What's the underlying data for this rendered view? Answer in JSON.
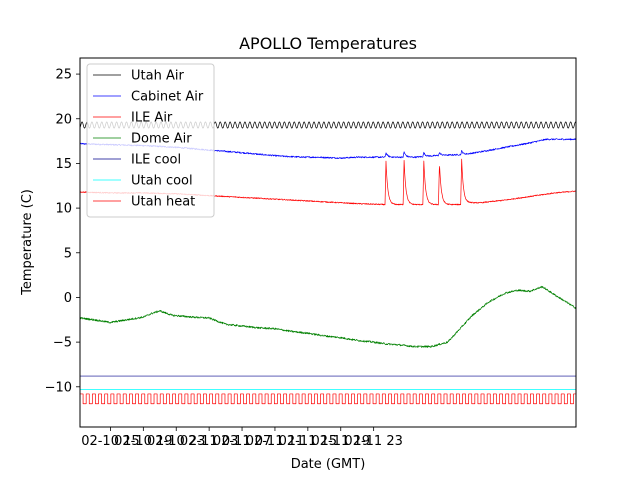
{
  "chart_data": {
    "type": "line",
    "title": "APOLLO Temperatures",
    "xlabel": "Date (GMT)",
    "ylabel": "Temperature (C)",
    "x_unit": "hours since 02-10 00:00 GMT",
    "xlim": [
      11.3,
      71.6
    ],
    "ylim": [
      -14.5,
      26.8
    ],
    "x_ticks": [
      {
        "x": 15,
        "label": "02-10 15"
      },
      {
        "x": 19,
        "label": "02-10 19"
      },
      {
        "x": 23,
        "label": "02-10 23"
      },
      {
        "x": 27,
        "label": "02-11 03"
      },
      {
        "x": 31,
        "label": "02-11 07"
      },
      {
        "x": 35,
        "label": "02-11 11"
      },
      {
        "x": 39,
        "label": "02-11 15"
      },
      {
        "x": 43,
        "label": "02-11 19"
      },
      {
        "x": 47,
        "label": "02-11 23"
      }
    ],
    "y_ticks": [
      {
        "y": -10,
        "label": "−10"
      },
      {
        "y": -5,
        "label": "−5"
      },
      {
        "y": 0,
        "label": "0"
      },
      {
        "y": 5,
        "label": "5"
      },
      {
        "y": 10,
        "label": "10"
      },
      {
        "y": 15,
        "label": "15"
      },
      {
        "y": 20,
        "label": "20"
      },
      {
        "y": 25,
        "label": "25"
      }
    ],
    "legend_position": "upper-left",
    "grid": false,
    "series": [
      {
        "name": "Utah Air",
        "color": "#000000",
        "style": "oscillating",
        "base": 19.3,
        "amplitude": 0.35,
        "period_hours": 0.6,
        "x_start": 11.3,
        "x_end": 71.6
      },
      {
        "name": "Cabinet Air",
        "color": "#0000ff",
        "style": "noisy",
        "noise": 0.08,
        "x": [
          11.3,
          15,
          19,
          23,
          27,
          31,
          33.3,
          36,
          38.5,
          40,
          43,
          45,
          48,
          50,
          52,
          55,
          58,
          60,
          63,
          66,
          68,
          71.6
        ],
        "y": [
          17.2,
          17.1,
          17.0,
          16.8,
          16.5,
          16.2,
          16.0,
          15.8,
          15.7,
          15.7,
          15.6,
          15.7,
          15.7,
          15.7,
          15.7,
          15.9,
          16.0,
          16.3,
          16.8,
          17.3,
          17.7,
          17.7
        ],
        "spikes": [
          {
            "x": 48.5,
            "y": 16.2
          },
          {
            "x": 50.7,
            "y": 16.3
          },
          {
            "x": 53.1,
            "y": 16.2
          },
          {
            "x": 55.0,
            "y": 16.2
          },
          {
            "x": 57.7,
            "y": 16.4
          }
        ]
      },
      {
        "name": "ILE Air",
        "color": "#ff0000",
        "style": "noisy",
        "noise": 0.06,
        "x": [
          11.3,
          15,
          19,
          23,
          27,
          31,
          35,
          39,
          43,
          45,
          48.3,
          50,
          52,
          55,
          57.5,
          58.5,
          60,
          63,
          66,
          69,
          71.6
        ],
        "y": [
          11.8,
          11.7,
          11.7,
          11.6,
          11.4,
          11.2,
          11.0,
          10.8,
          10.6,
          10.5,
          10.4,
          10.4,
          10.4,
          10.4,
          10.4,
          10.6,
          10.6,
          10.9,
          11.3,
          11.7,
          11.9
        ],
        "spikes": [
          {
            "x": 48.5,
            "y": 15.2
          },
          {
            "x": 50.7,
            "y": 15.4
          },
          {
            "x": 53.1,
            "y": 15.3
          },
          {
            "x": 55.0,
            "y": 15.1
          },
          {
            "x": 57.7,
            "y": 15.5
          }
        ]
      },
      {
        "name": "Dome Air",
        "color": "#008000",
        "style": "noisy",
        "noise": 0.1,
        "x": [
          11.3,
          13,
          15,
          17,
          19,
          20,
          21,
          22.5,
          25,
          27,
          29,
          31,
          33,
          35,
          37,
          39,
          41,
          43,
          45,
          47,
          48.5,
          50,
          52,
          54,
          56,
          57.5,
          59,
          61,
          63,
          64.5,
          66,
          67.5,
          69,
          71.6
        ],
        "y": [
          -2.3,
          -2.5,
          -2.8,
          -2.5,
          -2.2,
          -1.8,
          -1.5,
          -2.0,
          -2.2,
          -2.3,
          -3.0,
          -3.2,
          -3.4,
          -3.5,
          -3.8,
          -4.0,
          -4.3,
          -4.5,
          -4.8,
          -5.0,
          -5.2,
          -5.3,
          -5.5,
          -5.5,
          -5.0,
          -3.5,
          -2.0,
          -0.5,
          0.5,
          0.8,
          0.7,
          1.2,
          0.3,
          -1.2
        ]
      },
      {
        "name": "ILE cool",
        "color": "#00008b",
        "style": "constant",
        "value": -8.8
      },
      {
        "name": "Utah cool",
        "color": "#00ffff",
        "style": "constant",
        "value": -10.3
      },
      {
        "name": "Utah heat",
        "color": "#ff0000",
        "style": "square",
        "low": -11.9,
        "high": -10.8,
        "period_hours": 0.75,
        "x_start": 11.3,
        "x_end": 71.6
      }
    ]
  }
}
